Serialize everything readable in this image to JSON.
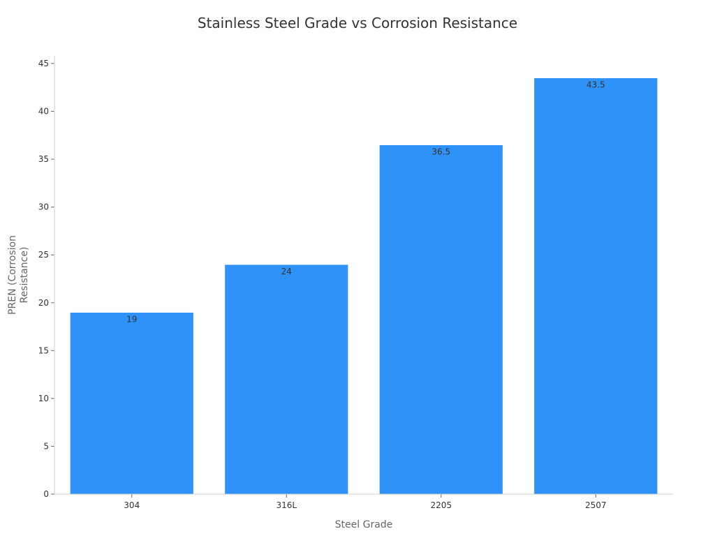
{
  "chart_data": {
    "type": "bar",
    "title": "Stainless Steel Grade vs Corrosion Resistance",
    "xlabel": "Steel Grade",
    "ylabel_lines": [
      "PREN (Corrosion",
      "Resistance)"
    ],
    "categories": [
      "304",
      "316L",
      "2205",
      "2507"
    ],
    "values": [
      19,
      24,
      36.5,
      43.5
    ],
    "value_labels": [
      "19",
      "24",
      "36.5",
      "43.5"
    ],
    "yticks": [
      0,
      5,
      10,
      15,
      20,
      25,
      30,
      35,
      40,
      45
    ],
    "ylim": [
      0,
      45.8
    ],
    "bar_color": "#2f92f8",
    "grid": false,
    "legend": "none"
  }
}
